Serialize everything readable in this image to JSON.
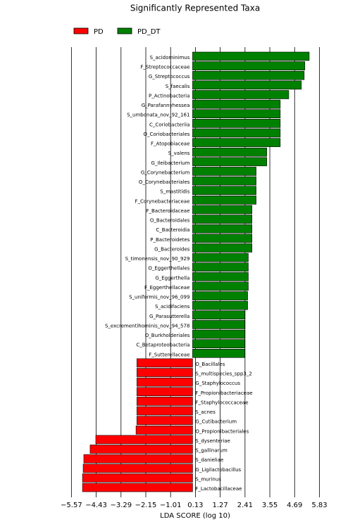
{
  "chart_data": {
    "type": "bar",
    "orientation": "horizontal",
    "title": "Significantly Represented Taxa",
    "x_label": "LDA SCORE (log 10)",
    "categories": [
      "S_acidominimus",
      "F_Streptococcaceae",
      "G_Streptococcus",
      "S_faecalis",
      "P_Actinobacteria",
      "G_Parafannyhessea",
      "S_umbonata_nov_92_161",
      "C_Coriobacteriia",
      "O_Coriobacteriales",
      "F_Atopobiaceae",
      "S_valens",
      "G_Ileibacterium",
      "G_Corynebacterium",
      "O_Corynebacteriales",
      "S_mastitidis",
      "F_Corynebacteriaceae",
      "F_Bacteroidaceae",
      "O_Bacteroidales",
      "C_Bacteroidia",
      "P_Bacteroidetes",
      "G_Bacteroides",
      "S_timonensis_nov_90_929",
      "O_Eggerthellales",
      "G_Eggerthella",
      "F_Eggerthellaceae",
      "S_uniformis_nov_96_099",
      "S_acidifaciens",
      "G_Parasutterella",
      "S_excrementihominis_nov_94_578",
      "O_Burkholderiales",
      "C_Betaproteobacteria",
      "F_Sutterellaceae",
      "O_Bacillales",
      "S_multispecies_spp3_2",
      "G_Staphylococcus",
      "F_Propionibacteriaceae",
      "F_Staphylococcaceae",
      "S_acnes",
      "G_Cutibacterium",
      "O_Propionibacteriales",
      "S_dysenteriae",
      "S_gallinarum",
      "S_danieliae",
      "G_Ligilactobacillus",
      "S_murinus",
      "F_Lactobacillaceae"
    ],
    "series": [
      {
        "name": "PD",
        "color": "#ff0000",
        "values": [
          null,
          null,
          null,
          null,
          null,
          null,
          null,
          null,
          null,
          null,
          null,
          null,
          null,
          null,
          null,
          null,
          null,
          null,
          null,
          null,
          null,
          null,
          null,
          null,
          null,
          null,
          null,
          null,
          null,
          null,
          null,
          null,
          -2.56,
          -2.56,
          -2.56,
          -2.56,
          -2.56,
          -2.56,
          -2.56,
          -2.6,
          -4.45,
          -4.71,
          -5.0,
          -5.03,
          -5.06,
          -5.06
        ]
      },
      {
        "name": "PD_DT",
        "color": "#008000",
        "values": [
          5.36,
          5.16,
          5.13,
          5.0,
          4.42,
          4.03,
          4.03,
          4.03,
          4.03,
          4.03,
          3.41,
          3.41,
          2.92,
          2.92,
          2.92,
          2.92,
          2.73,
          2.73,
          2.73,
          2.73,
          2.73,
          2.56,
          2.56,
          2.56,
          2.56,
          2.53,
          2.53,
          2.4,
          2.4,
          2.4,
          2.4,
          2.4,
          null,
          null,
          null,
          null,
          null,
          null,
          null,
          null,
          null,
          null,
          null,
          null,
          null,
          null
        ]
      }
    ],
    "xlim": [
      -6.1,
      6.3
    ],
    "xticks": [
      {
        "value": -5.57,
        "label": "−5.57"
      },
      {
        "value": -4.43,
        "label": "−4.43"
      },
      {
        "value": -3.29,
        "label": "−3.29"
      },
      {
        "value": -2.15,
        "label": "−2.15"
      },
      {
        "value": -1.01,
        "label": "−1.01"
      },
      0.13,
      1.27,
      2.41,
      3.55,
      4.69,
      5.83
    ],
    "grid": true
  }
}
